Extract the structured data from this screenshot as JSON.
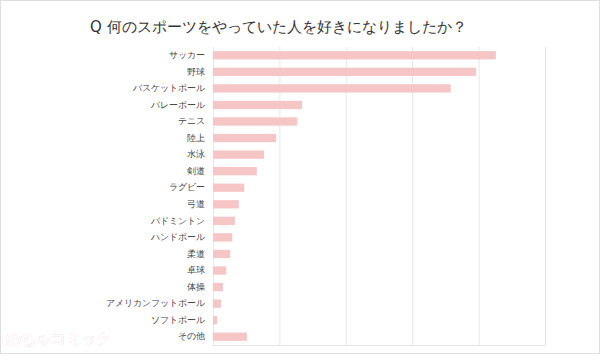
{
  "chart_data": {
    "type": "bar",
    "orientation": "horizontal",
    "title": "Q 何のスポーツをやっていた人を好きになりましたか？",
    "categories": [
      "サッカー",
      "野球",
      "バスケットボール",
      "バレーボール",
      "テニス",
      "陸上",
      "水泳",
      "剣道",
      "ラグビー",
      "弓道",
      "バドミントン",
      "ハンドボール",
      "柔道",
      "卓球",
      "体操",
      "アメリカンフットボール",
      "ソフトボール",
      "その他"
    ],
    "values": [
      42.6,
      39.6,
      35.8,
      13.4,
      12.7,
      9.5,
      7.7,
      6.6,
      4.7,
      3.9,
      3.3,
      2.9,
      2.6,
      2.0,
      1.5,
      1.2,
      0.6,
      5.1
    ],
    "color": "#f6c5c5",
    "xlim": [
      0,
      50
    ],
    "xticks": [
      0,
      10,
      20,
      30,
      40,
      50
    ],
    "grid": true,
    "tick_labels": "y",
    "annotations": [
      "めちゃコミック"
    ]
  }
}
